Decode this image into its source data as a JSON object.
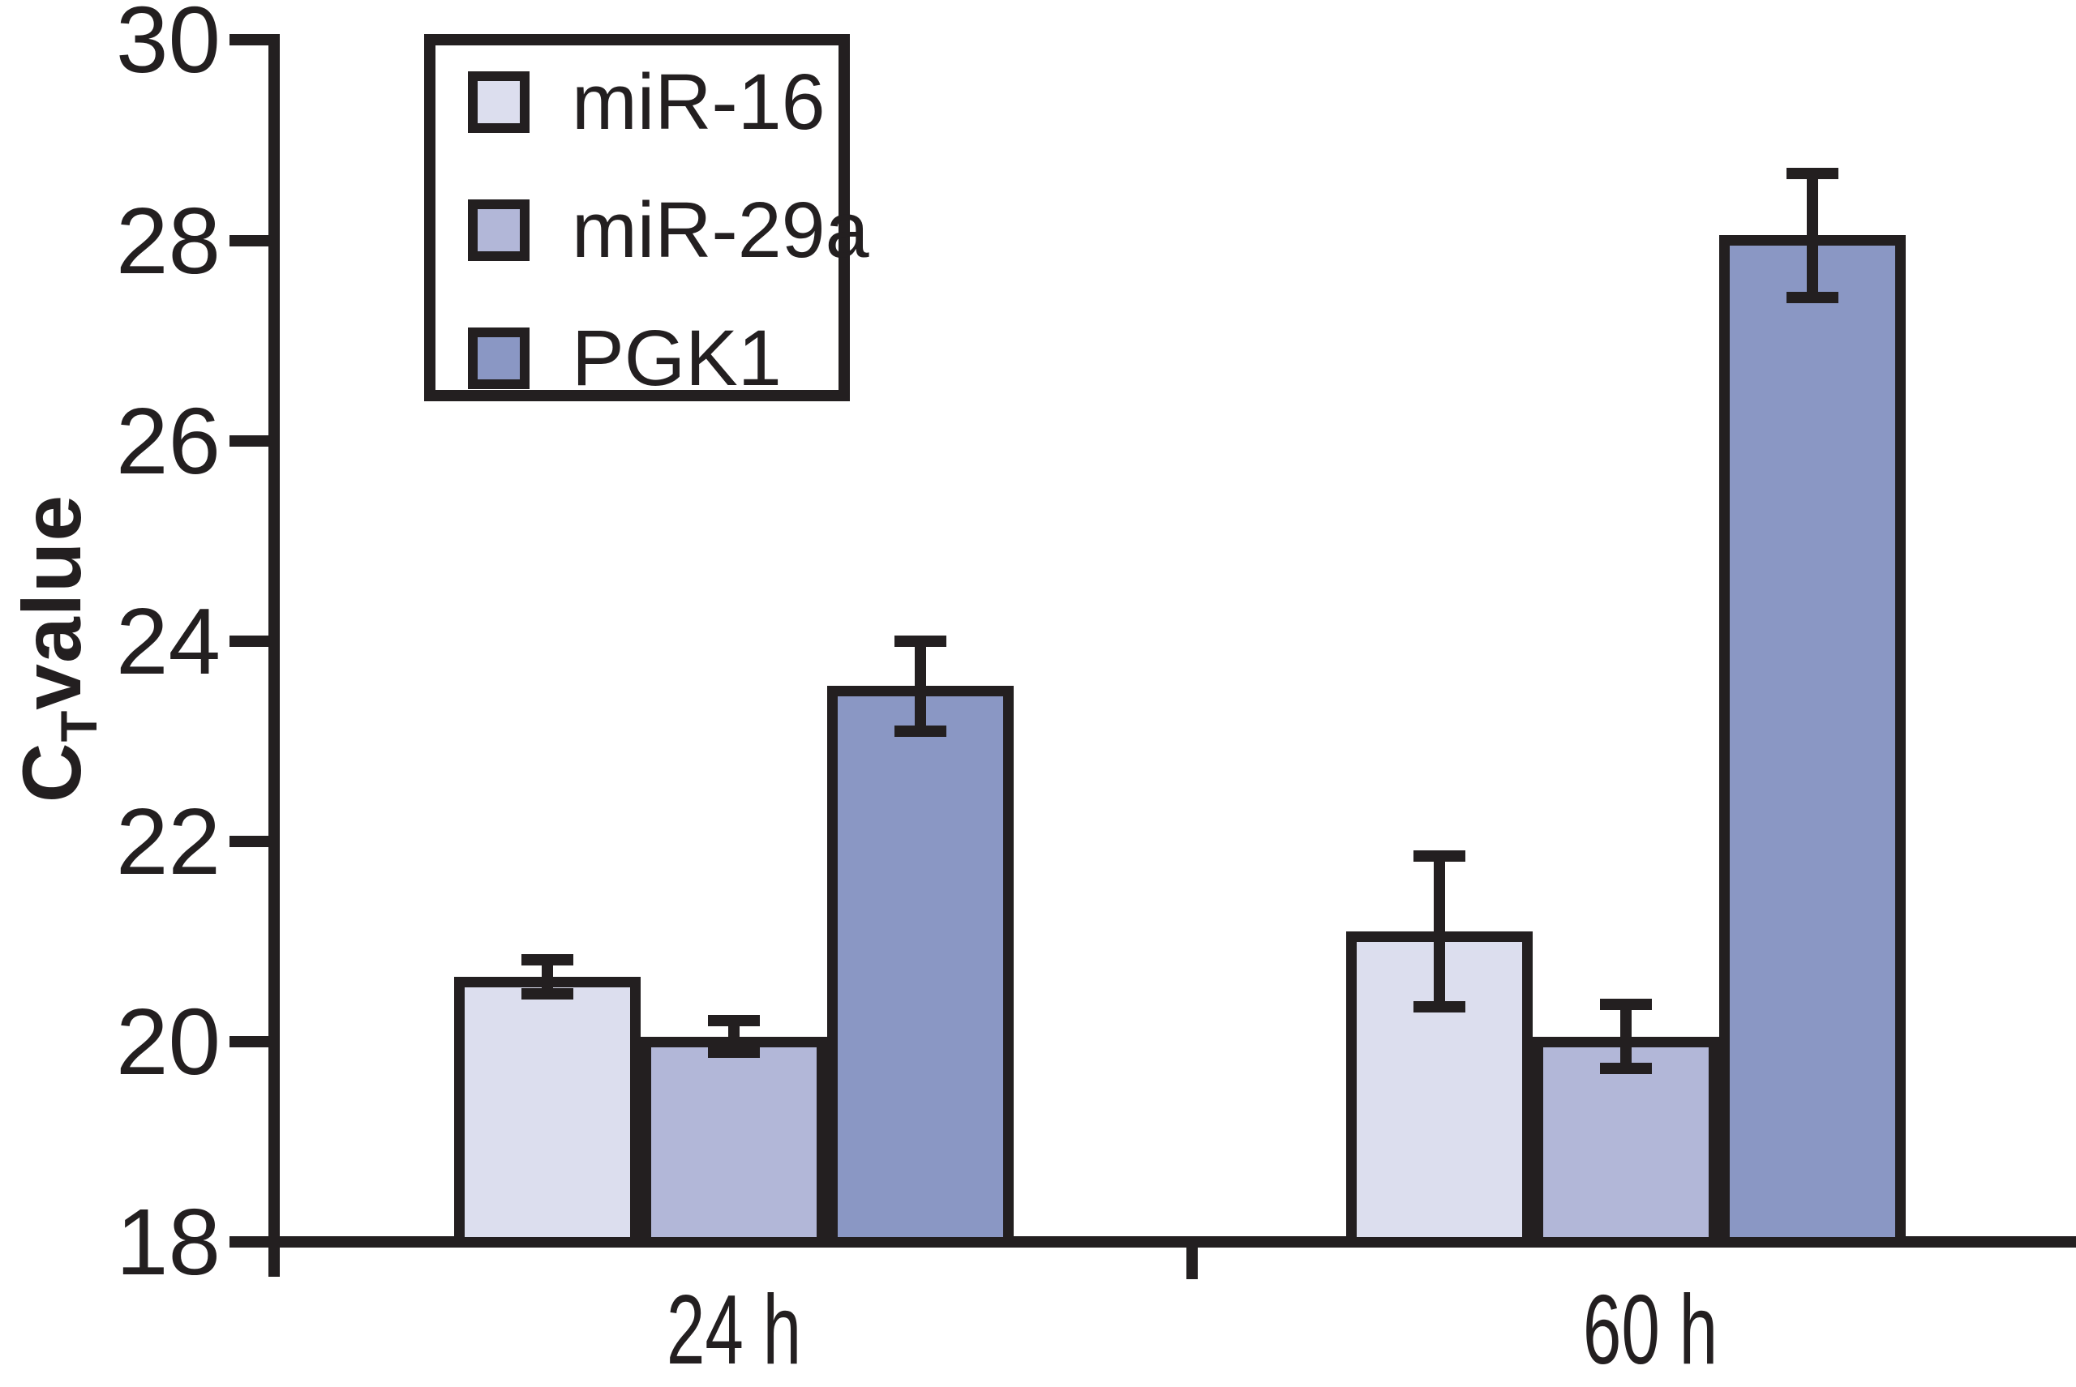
{
  "figure": {
    "background": "#ffffff"
  },
  "y_axis": {
    "title_main": "C",
    "title_sub": "T",
    "title_rest": "value",
    "tick_labels": [
      "30",
      "28",
      "26",
      "24",
      "22",
      "20",
      "18"
    ]
  },
  "x_axis": {
    "categories": [
      "24 h",
      "60 h"
    ]
  },
  "legend": {
    "items": [
      {
        "label": "miR-16",
        "color": "#dcdeee"
      },
      {
        "label": "miR-29a",
        "color": "#b2b7d8"
      },
      {
        "label": "PGK1",
        "color": "#8a97c4"
      }
    ]
  },
  "colors": {
    "ink": "#231f20",
    "background": "#ffffff"
  },
  "chart_data": {
    "type": "bar",
    "categories": [
      "24 h",
      "60 h"
    ],
    "series": [
      {
        "name": "miR-16",
        "color": "#dcdeee",
        "values": [
          20.65,
          21.1
        ],
        "errors": [
          0.17,
          0.75
        ]
      },
      {
        "name": "miR-29a",
        "color": "#b2b7d8",
        "values": [
          20.05,
          20.05
        ],
        "errors": [
          0.16,
          0.32
        ]
      },
      {
        "name": "PGK1",
        "color": "#8a97c4",
        "values": [
          23.55,
          28.05
        ],
        "errors": [
          0.45,
          0.62
        ]
      }
    ],
    "title": "",
    "xlabel": "",
    "ylabel": "CT value",
    "ylim": [
      18,
      30
    ],
    "yticks": [
      30,
      28,
      26,
      24,
      22,
      20,
      18
    ],
    "grid": false,
    "legend_position": "upper-left",
    "error_bars": true
  }
}
